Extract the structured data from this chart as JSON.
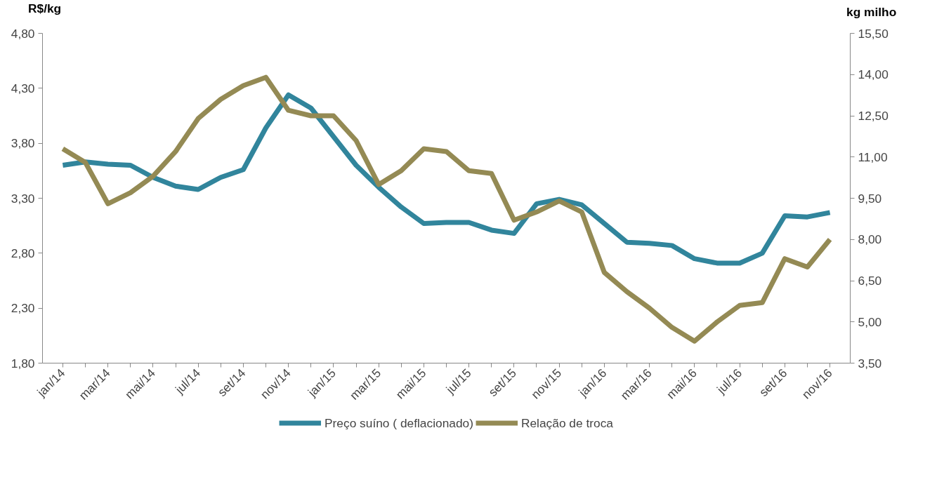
{
  "chart_data": {
    "type": "line",
    "categories": [
      "jan/14",
      null,
      "mar/14",
      null,
      "mai/14",
      null,
      "jul/14",
      null,
      "set/14",
      null,
      "nov/14",
      null,
      "jan/15",
      null,
      "mar/15",
      null,
      "mai/15",
      null,
      "jul/15",
      null,
      "set/15",
      null,
      "nov/15",
      null,
      "jan/16",
      null,
      "mar/16",
      null,
      "mai/16",
      null,
      "jul/16",
      null,
      "set/16",
      null,
      "nov/16"
    ],
    "series": [
      {
        "name": "Preço suíno ( deflacionado)",
        "color": "#31859c",
        "values": [
          3.6,
          3.63,
          3.61,
          3.6,
          3.49,
          3.41,
          3.38,
          3.49,
          3.56,
          3.94,
          4.24,
          4.12,
          3.86,
          3.6,
          3.4,
          3.22,
          3.07,
          3.08,
          3.08,
          3.01,
          2.98,
          3.25,
          3.29,
          3.24,
          3.07,
          2.9,
          2.89,
          2.87,
          2.75,
          2.71,
          2.71,
          2.8,
          3.14,
          3.13,
          3.17
        ]
      },
      {
        "name": "Relação de troca",
        "color": "#948a54",
        "axis": "y2",
        "values": [
          11.3,
          10.8,
          9.3,
          9.7,
          10.3,
          11.2,
          12.4,
          13.1,
          13.6,
          13.9,
          12.7,
          12.5,
          12.5,
          11.6,
          10.0,
          10.5,
          11.3,
          11.2,
          10.5,
          10.4,
          8.7,
          9.0,
          9.4,
          9.0,
          6.8,
          6.1,
          5.5,
          4.8,
          4.3,
          5.0,
          5.6,
          5.7,
          7.3,
          7.0,
          8.0
        ]
      }
    ],
    "ylabel": "R$/kg",
    "y2label": "kg milho",
    "ylim": [
      1.8,
      4.8
    ],
    "yticks": [
      {
        "value": 1.8,
        "label": "1,80"
      },
      {
        "value": 2.3,
        "label": "2,30"
      },
      {
        "value": 2.8,
        "label": "2,80"
      },
      {
        "value": 3.3,
        "label": "3,30"
      },
      {
        "value": 3.8,
        "label": "3,80"
      },
      {
        "value": 4.3,
        "label": "4,30"
      },
      {
        "value": 4.8,
        "label": "4,80"
      }
    ],
    "y2lim": [
      3.5,
      15.5
    ],
    "y2ticks": [
      {
        "value": 3.5,
        "label": "3,50"
      },
      {
        "value": 5.0,
        "label": "5,00"
      },
      {
        "value": 6.5,
        "label": "6,50"
      },
      {
        "value": 8.0,
        "label": "8,00"
      },
      {
        "value": 9.5,
        "label": "9,50"
      },
      {
        "value": 11.0,
        "label": "11,00"
      },
      {
        "value": 12.5,
        "label": "12,50"
      },
      {
        "value": 14.0,
        "label": "14,00"
      },
      {
        "value": 15.5,
        "label": "15,50"
      }
    ],
    "legend": "bottom",
    "grid": false
  }
}
